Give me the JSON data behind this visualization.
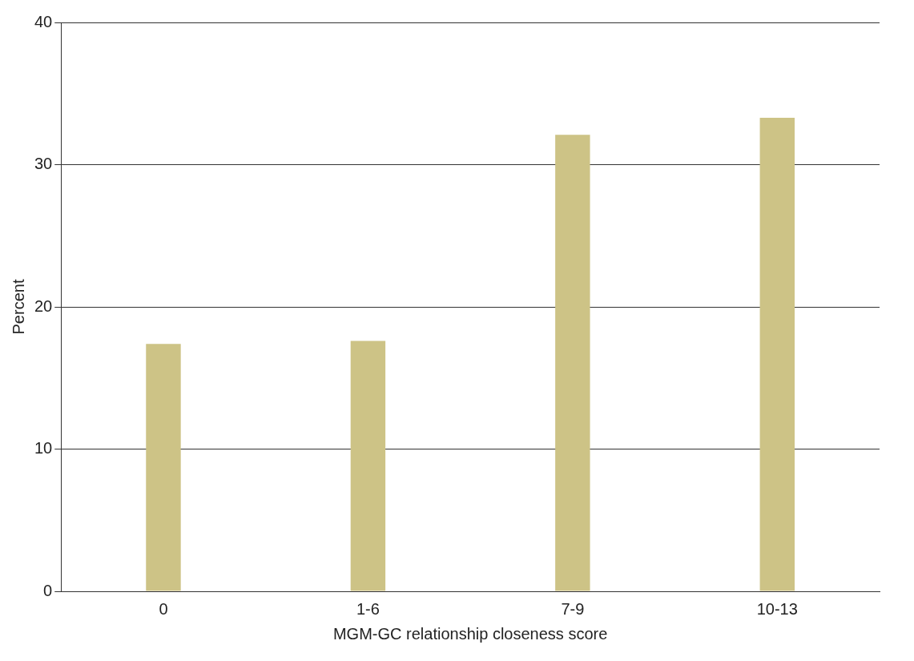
{
  "chart_data": {
    "type": "bar",
    "xlabel": "MGM-GC relationship closeness score",
    "ylabel": "Percent",
    "categories": [
      "0",
      "1-6",
      "7-9",
      "10-13"
    ],
    "values": [
      17.4,
      17.6,
      32.1,
      33.3
    ],
    "color": "#cdc386",
    "ylim": [
      0,
      40
    ],
    "yticks": [
      0,
      10,
      20,
      30,
      40
    ],
    "grid": "y"
  }
}
